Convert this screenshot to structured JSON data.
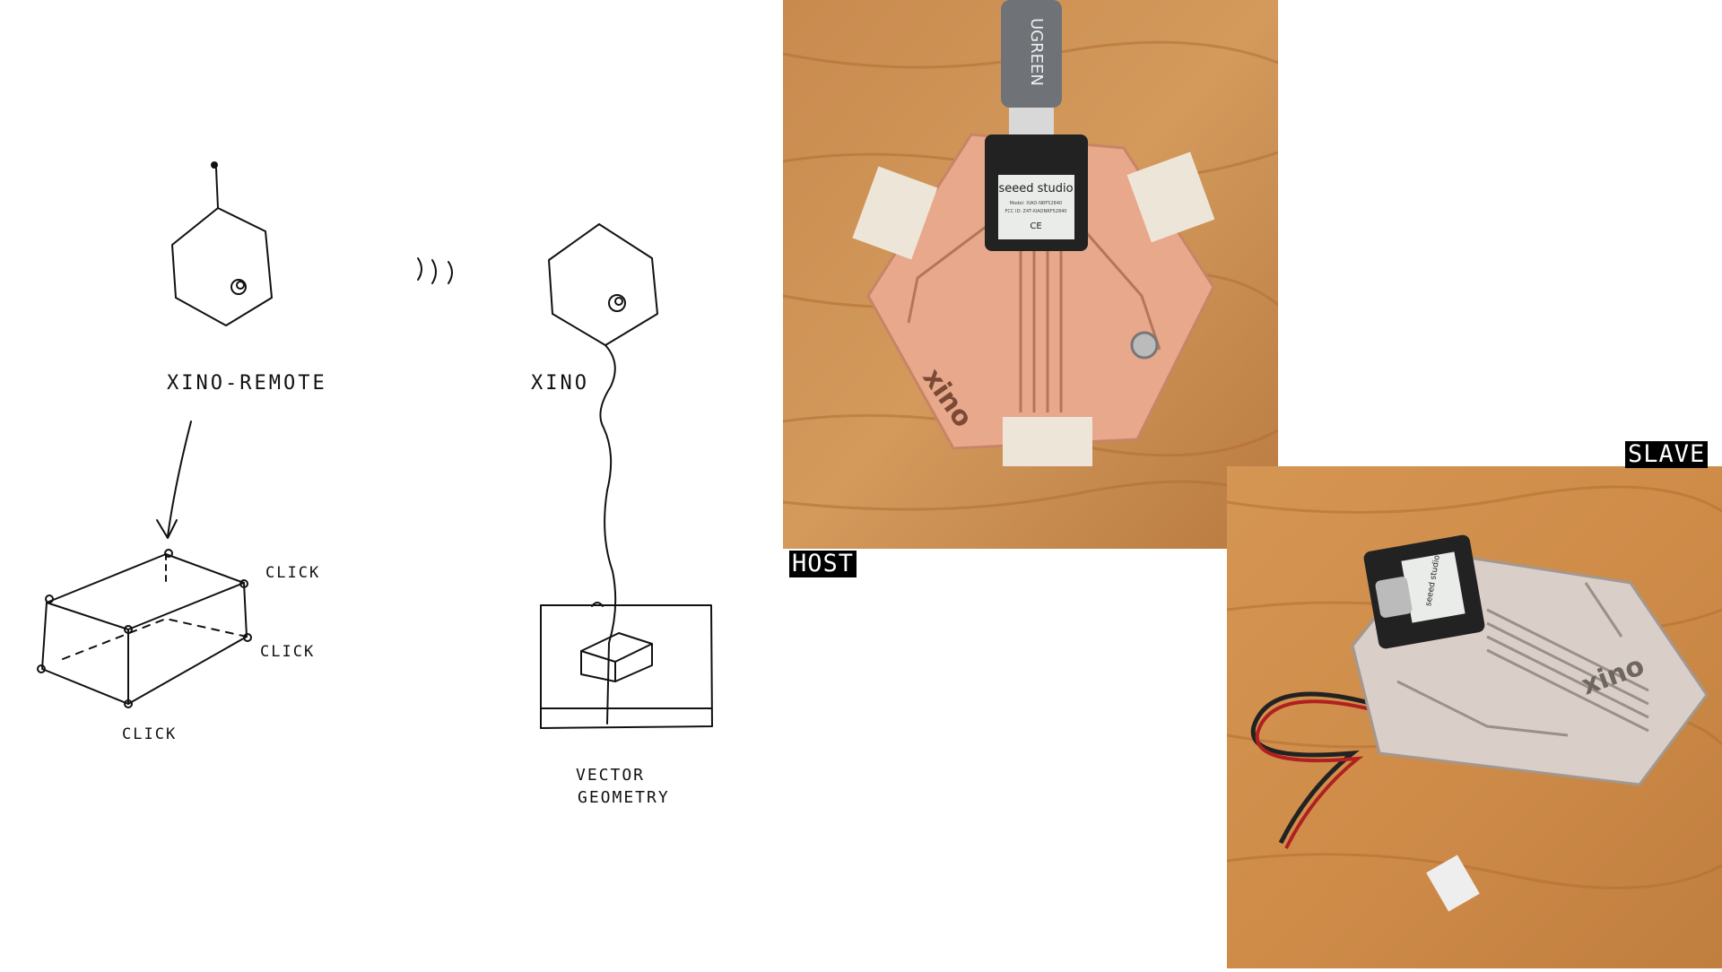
{
  "sketch": {
    "remote_label": "XINO-REMOTE",
    "device_label": "XINO",
    "signal_mark": ")))",
    "click_top": "CLICK",
    "click_right": "CLICK",
    "click_bottom": "CLICK",
    "caption_line1": "VECTOR",
    "caption_line2": "GEOMETRY"
  },
  "photos": {
    "host_label": "HOST",
    "slave_label": "SLAVE",
    "cable_brand": "UGREEN",
    "host_module_brand": "seeed studio",
    "host_module_model": "Model: XIAO-NRF52840",
    "host_module_fcc": "FCC ID: Z4T-XIAONRF52840",
    "host_module_cert": "CE",
    "host_board_logo": "xino",
    "slave_module_brand": "seeed studio",
    "slave_board_logo": "xino"
  },
  "colors": {
    "wood": "#c98a4e",
    "copper": "#e8a88c",
    "tag_bg": "#000000"
  }
}
